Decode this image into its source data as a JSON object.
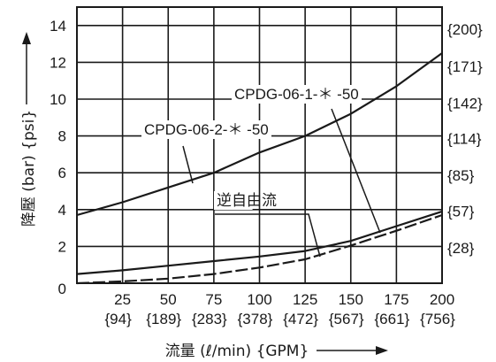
{
  "chart_data": {
    "type": "line",
    "xlim": [
      0,
      200
    ],
    "ylim": [
      0,
      15
    ],
    "grid": true,
    "x_ticks": [
      {
        "value": 25,
        "label": "25",
        "sub": "{94}"
      },
      {
        "value": 50,
        "label": "50",
        "sub": "{189}"
      },
      {
        "value": 75,
        "label": "75",
        "sub": "{283}"
      },
      {
        "value": 100,
        "label": "100",
        "sub": "{378}"
      },
      {
        "value": 125,
        "label": "125",
        "sub": "{472}"
      },
      {
        "value": 150,
        "label": "150",
        "sub": "{567}"
      },
      {
        "value": 175,
        "label": "175",
        "sub": "{661}"
      },
      {
        "value": 200,
        "label": "200",
        "sub": "{756}"
      }
    ],
    "x_origin_label": "0",
    "y_ticks": [
      {
        "value": 2,
        "label": "2"
      },
      {
        "value": 4,
        "label": "4"
      },
      {
        "value": 6,
        "label": "6"
      },
      {
        "value": 8,
        "label": "8"
      },
      {
        "value": 10,
        "label": "10"
      },
      {
        "value": 12,
        "label": "12"
      },
      {
        "value": 14,
        "label": "14"
      }
    ],
    "y2_ticks": [
      {
        "value": 1.93,
        "label": "{28}"
      },
      {
        "value": 3.93,
        "label": "{57}"
      },
      {
        "value": 5.86,
        "label": "{85}"
      },
      {
        "value": 7.86,
        "label": "{114}"
      },
      {
        "value": 9.79,
        "label": "{142}"
      },
      {
        "value": 11.79,
        "label": "{171}"
      },
      {
        "value": 13.79,
        "label": "{200}"
      }
    ],
    "xlabel": "流量 (ℓ/min)  {GPM}",
    "ylabel": "降壓 (bar)  {psi}",
    "series": [
      {
        "name": "CPDG-06-2-＊ -50",
        "style": "solid",
        "x": [
          0,
          25,
          50,
          75,
          100,
          125,
          150,
          175,
          200
        ],
        "y": [
          3.7,
          4.4,
          5.2,
          6.0,
          7.1,
          8.0,
          9.2,
          10.7,
          12.5
        ]
      },
      {
        "name": "CPDG-06-1-＊ -50",
        "style": "solid",
        "x": [
          0,
          25,
          50,
          75,
          100,
          125,
          150,
          175,
          200
        ],
        "y": [
          0.5,
          0.7,
          0.95,
          1.2,
          1.45,
          1.75,
          2.3,
          3.1,
          3.9
        ]
      },
      {
        "name": "逆自由流",
        "style": "dashed",
        "x": [
          0,
          25,
          50,
          75,
          100,
          125,
          150,
          175,
          200
        ],
        "y": [
          0.0,
          0.1,
          0.25,
          0.5,
          0.85,
          1.3,
          2.05,
          2.85,
          3.7
        ]
      }
    ],
    "annotations": [
      {
        "text": "CPDG-06-2-＊ -50",
        "points_to": "CPDG-06-2-＊ -50"
      },
      {
        "text": "CPDG-06-1-＊ -50",
        "points_to": "CPDG-06-1-＊ -50"
      },
      {
        "text": "逆自由流",
        "points_to": "逆自由流"
      }
    ]
  }
}
